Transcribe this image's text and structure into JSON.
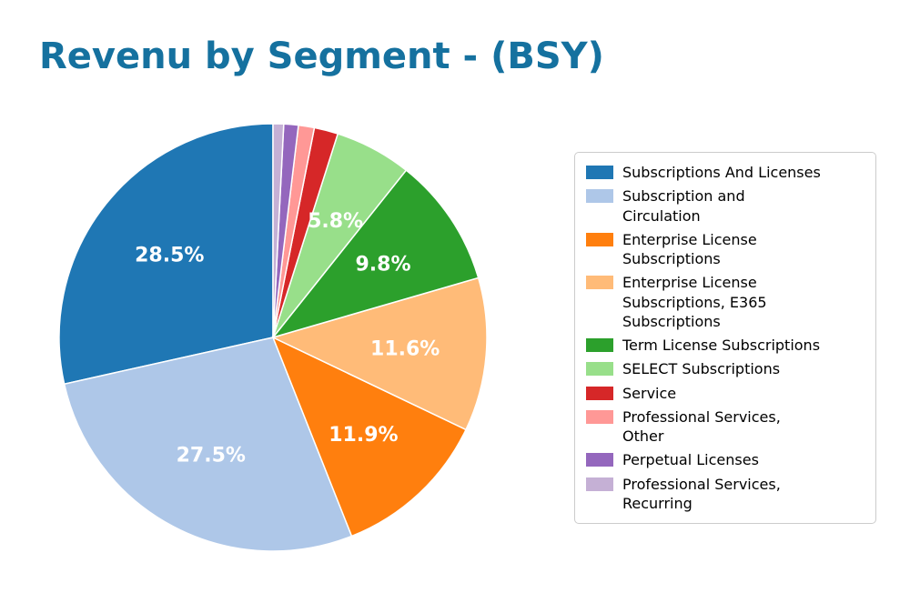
{
  "title": "Revenu by Segment - (BSY)",
  "colors": {
    "title": "#15719f",
    "background": "#ffffff",
    "pct_label": "#ffffff",
    "legend_border": "#cccccc"
  },
  "chart_data": {
    "type": "pie",
    "title": "Revenu by Segment - (BSY)",
    "start_angle_deg": 90,
    "direction": "counterclockwise",
    "legend_position": "right",
    "pct_label_threshold": 5,
    "slices": [
      {
        "label": "Subscriptions And Licenses",
        "value": 28.5,
        "pct_label": "28.5%",
        "color": "#1f77b4"
      },
      {
        "label": "Subscription and\nCirculation",
        "value": 27.5,
        "pct_label": "27.5%",
        "color": "#aec7e8"
      },
      {
        "label": "Enterprise License\nSubscriptions",
        "value": 11.9,
        "pct_label": "11.9%",
        "color": "#ff7f0e"
      },
      {
        "label": "Enterprise License\nSubscriptions, E365\nSubscriptions",
        "value": 11.6,
        "pct_label": "11.6%",
        "color": "#ffbb78"
      },
      {
        "label": "Term License Subscriptions",
        "value": 9.8,
        "pct_label": "9.8%",
        "color": "#2ca02c"
      },
      {
        "label": "SELECT Subscriptions",
        "value": 5.8,
        "pct_label": "5.8%",
        "color": "#98df8a"
      },
      {
        "label": "Service",
        "value": 1.8,
        "pct_label": "",
        "color": "#d62728"
      },
      {
        "label": "Professional Services,\nOther",
        "value": 1.2,
        "pct_label": "",
        "color": "#ff9896"
      },
      {
        "label": "Perpetual Licenses",
        "value": 1.1,
        "pct_label": "",
        "color": "#9467bd"
      },
      {
        "label": "Professional Services,\nRecurring",
        "value": 0.8,
        "pct_label": "",
        "color": "#c5b0d5"
      }
    ]
  }
}
